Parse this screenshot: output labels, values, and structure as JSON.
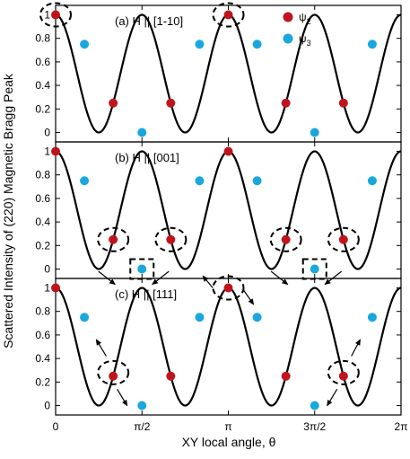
{
  "chart_data": {
    "type": "line",
    "ylabel": "Scattered Intensity of (220) Magnetic Bragg Peak",
    "xlabel": "XY local angle, θ",
    "x_tick_labels": [
      "0",
      "π/2",
      "π",
      "3π/2",
      "2π"
    ],
    "y_tick_labels": [
      "0",
      "0.2",
      "0.4",
      "0.6",
      "0.8",
      "1"
    ],
    "xlim_rad": [
      0,
      6.2832
    ],
    "ylim": [
      -0.08,
      1.08
    ],
    "curve": "cos²(2θ)",
    "legend": {
      "placement": "top-right of panel (a)",
      "entries": [
        {
          "label": "ψ",
          "subscript": "2",
          "color": "#c0141c"
        },
        {
          "label": "ψ",
          "subscript": "3",
          "color": "#1aa7e0"
        }
      ]
    },
    "panels": [
      {
        "label": "(a) H || [1-10]",
        "points": [
          {
            "x": 0,
            "y": 1,
            "series": "psi2"
          },
          {
            "x": 0.5236,
            "y": 0.75,
            "series": "psi3"
          },
          {
            "x": 1.0472,
            "y": 0.25,
            "series": "psi2"
          },
          {
            "x": 1.5708,
            "y": 0,
            "series": "psi3"
          },
          {
            "x": 2.0944,
            "y": 0.25,
            "series": "psi2"
          },
          {
            "x": 2.618,
            "y": 0.75,
            "series": "psi3"
          },
          {
            "x": 3.1416,
            "y": 1,
            "series": "psi2"
          },
          {
            "x": 3.6652,
            "y": 0.75,
            "series": "psi3"
          },
          {
            "x": 4.1888,
            "y": 0.25,
            "series": "psi2"
          },
          {
            "x": 4.7124,
            "y": 0,
            "series": "psi3"
          },
          {
            "x": 5.236,
            "y": 0.25,
            "series": "psi2"
          },
          {
            "x": 5.7596,
            "y": 0.75,
            "series": "psi3"
          }
        ],
        "highlight_ellipses": [
          {
            "x": 0,
            "y": 1
          },
          {
            "x": 3.1416,
            "y": 1
          }
        ],
        "highlight_boxes": [],
        "arrows": []
      },
      {
        "label": "(b) H || [001]",
        "points": [
          {
            "x": 0,
            "y": 1,
            "series": "psi2"
          },
          {
            "x": 0.5236,
            "y": 0.75,
            "series": "psi3"
          },
          {
            "x": 1.0472,
            "y": 0.25,
            "series": "psi2"
          },
          {
            "x": 1.5708,
            "y": 0,
            "series": "psi3"
          },
          {
            "x": 2.0944,
            "y": 0.25,
            "series": "psi2"
          },
          {
            "x": 2.618,
            "y": 0.75,
            "series": "psi3"
          },
          {
            "x": 3.1416,
            "y": 1,
            "series": "psi2"
          },
          {
            "x": 3.6652,
            "y": 0.75,
            "series": "psi3"
          },
          {
            "x": 4.1888,
            "y": 0.25,
            "series": "psi2"
          },
          {
            "x": 4.7124,
            "y": 0,
            "series": "psi3"
          },
          {
            "x": 5.236,
            "y": 0.25,
            "series": "psi2"
          },
          {
            "x": 5.7596,
            "y": 0.75,
            "series": "psi3"
          }
        ],
        "highlight_ellipses": [
          {
            "x": 1.0472,
            "y": 0.25
          },
          {
            "x": 2.0944,
            "y": 0.25
          },
          {
            "x": 4.1888,
            "y": 0.25
          },
          {
            "x": 5.236,
            "y": 0.25
          }
        ],
        "highlight_boxes": [
          {
            "x": 1.5708,
            "y": 0
          },
          {
            "x": 4.7124,
            "y": 0
          }
        ],
        "arrows": [
          {
            "from": [
              0.78,
              -0.02
            ],
            "to": [
              1.08,
              -0.13
            ]
          },
          {
            "from": [
              2.06,
              -0.02
            ],
            "to": [
              1.76,
              -0.13
            ]
          },
          {
            "from": [
              3.92,
              -0.02
            ],
            "to": [
              4.22,
              -0.13
            ]
          },
          {
            "from": [
              5.2,
              -0.02
            ],
            "to": [
              4.9,
              -0.13
            ]
          }
        ]
      },
      {
        "label": "(c) H || [111]",
        "points": [
          {
            "x": 0,
            "y": 1,
            "series": "psi2"
          },
          {
            "x": 0.5236,
            "y": 0.75,
            "series": "psi3"
          },
          {
            "x": 1.0472,
            "y": 0.25,
            "series": "psi2"
          },
          {
            "x": 1.5708,
            "y": 0,
            "series": "psi3"
          },
          {
            "x": 2.0944,
            "y": 0.25,
            "series": "psi2"
          },
          {
            "x": 2.618,
            "y": 0.75,
            "series": "psi3"
          },
          {
            "x": 3.1416,
            "y": 1,
            "series": "psi2"
          },
          {
            "x": 3.6652,
            "y": 0.75,
            "series": "psi3"
          },
          {
            "x": 4.1888,
            "y": 0.25,
            "series": "psi2"
          },
          {
            "x": 4.7124,
            "y": 0,
            "series": "psi3"
          },
          {
            "x": 5.236,
            "y": 0.25,
            "series": "psi2"
          },
          {
            "x": 5.7596,
            "y": 0.75,
            "series": "psi3"
          }
        ],
        "highlight_ellipses": [
          {
            "x": 1.0472,
            "y": 0.28
          },
          {
            "x": 3.1416,
            "y": 1
          },
          {
            "x": 5.236,
            "y": 0.28
          }
        ],
        "highlight_boxes": [],
        "arrows": [
          {
            "from": [
              0.92,
              0.42
            ],
            "to": [
              0.74,
              0.56
            ]
          },
          {
            "from": [
              1.12,
              0.14
            ],
            "to": [
              1.3,
              0.0
            ]
          },
          {
            "from": [
              2.86,
              1.0
            ],
            "to": [
              2.68,
              1.1
            ]
          },
          {
            "from": [
              3.42,
              0.98
            ],
            "to": [
              3.6,
              0.86
            ]
          },
          {
            "from": [
              5.38,
              0.42
            ],
            "to": [
              5.54,
              0.56
            ]
          },
          {
            "from": [
              5.12,
              0.14
            ],
            "to": [
              4.94,
              0.0
            ]
          }
        ]
      }
    ]
  }
}
